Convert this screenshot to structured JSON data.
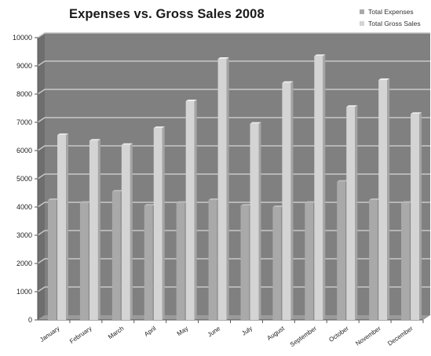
{
  "chart_data": {
    "type": "bar",
    "title": "Expenses vs. Gross Sales 2008",
    "xlabel": "",
    "ylabel": "",
    "ylim": [
      0,
      10000
    ],
    "yticks": [
      0,
      1000,
      2000,
      3000,
      4000,
      5000,
      6000,
      7000,
      8000,
      9000,
      10000
    ],
    "grid": true,
    "legend_position": "top-right",
    "categories": [
      "January",
      "February",
      "March",
      "April",
      "May",
      "June",
      "July",
      "August",
      "September",
      "October",
      "November",
      "December"
    ],
    "series": [
      {
        "name": "Total Expenses",
        "color": "#a9a9a9",
        "values": [
          4250,
          4150,
          4550,
          4050,
          4150,
          4250,
          4050,
          4000,
          4150,
          4900,
          4250,
          4150
        ]
      },
      {
        "name": "Total Gross Sales",
        "color": "#d4d4d4",
        "values": [
          6550,
          6350,
          6200,
          6800,
          7750,
          9250,
          6950,
          8400,
          9350,
          7550,
          8500,
          7300
        ]
      }
    ]
  },
  "colors": {
    "plot_background": "#808080",
    "side_wall": "#6e6e6e",
    "floor": "#9a9a9a",
    "gridline": "#c8c8c8"
  }
}
